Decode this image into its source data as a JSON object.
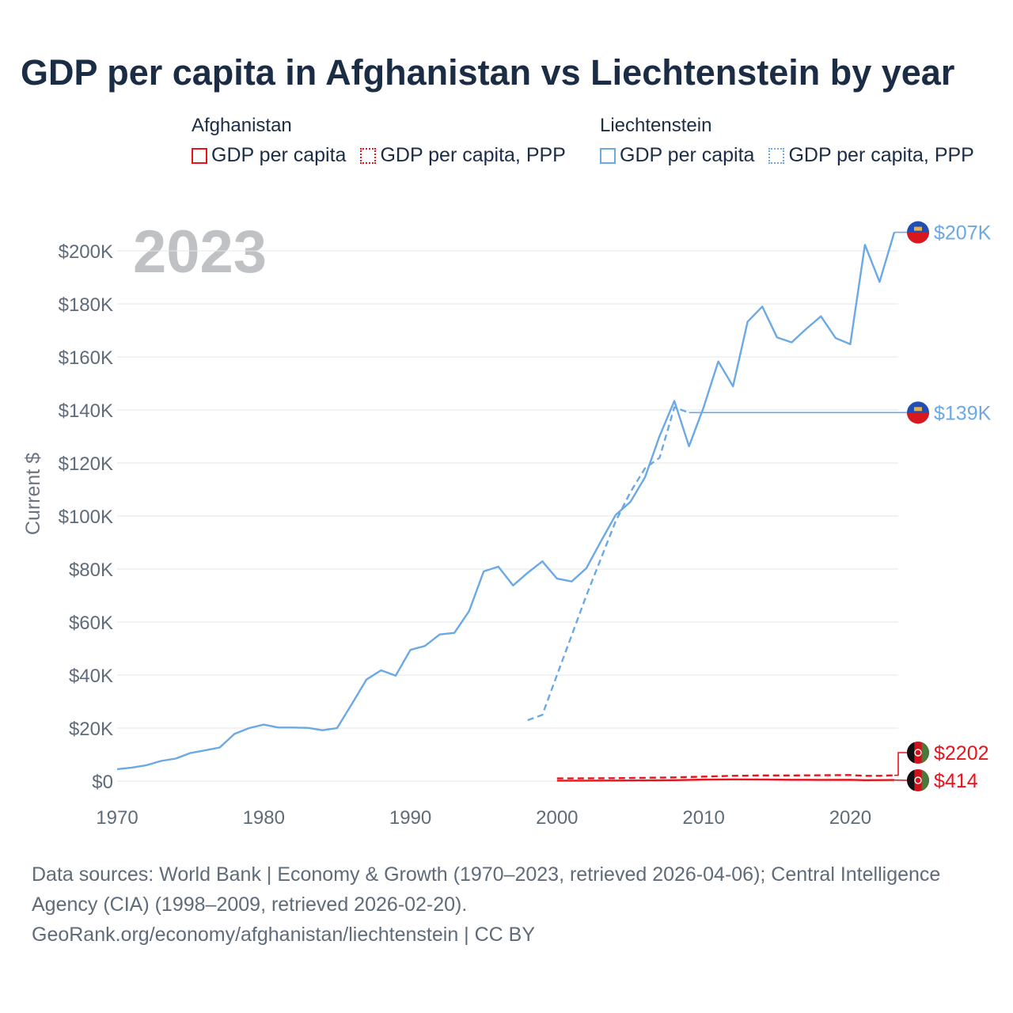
{
  "title": "GDP per capita in Afghanistan vs Liechtenstein by year",
  "legend": {
    "afghanistan": {
      "name": "Afghanistan",
      "items": [
        "GDP per capita",
        "GDP per capita, PPP"
      ]
    },
    "liechtenstein": {
      "name": "Liechtenstein",
      "items": [
        "GDP per capita",
        "GDP per capita, PPP"
      ]
    }
  },
  "colors": {
    "afghanistan": "#e8141c",
    "liechtenstein": "#6aa8e6"
  },
  "year_label": "2023",
  "end_labels": {
    "lie_gdp": "$207K",
    "lie_ppp": "$139K",
    "afg_ppp": "$2202",
    "afg_gdp": "$414"
  },
  "chart_data": {
    "type": "line",
    "title": "GDP per capita in Afghanistan vs Liechtenstein by year",
    "xlabel": "",
    "ylabel": "Current $",
    "xlim": [
      1970,
      2024
    ],
    "ylim": [
      0,
      210000
    ],
    "x_ticks": [
      1970,
      1980,
      1990,
      2000,
      2010,
      2020
    ],
    "x_tick_labels": [
      "1970",
      "1980",
      "1990",
      "2000",
      "2010",
      "2020"
    ],
    "y_ticks": [
      0,
      20000,
      40000,
      60000,
      80000,
      100000,
      120000,
      140000,
      160000,
      180000,
      200000
    ],
    "y_tick_labels": [
      "$0",
      "$20K",
      "$40K",
      "$60K",
      "$80K",
      "$100K",
      "$120K",
      "$140K",
      "$160K",
      "$180K",
      "$200K"
    ],
    "series": [
      {
        "name": "Liechtenstein GDP per capita",
        "style": "solid",
        "color": "#6aa8e6",
        "x": [
          1970,
          1971,
          1972,
          1973,
          1974,
          1975,
          1976,
          1977,
          1978,
          1979,
          1980,
          1981,
          1982,
          1983,
          1984,
          1985,
          1986,
          1987,
          1988,
          1989,
          1990,
          1991,
          1992,
          1993,
          1994,
          1995,
          1996,
          1997,
          1998,
          1999,
          2000,
          2001,
          2002,
          2003,
          2004,
          2005,
          2006,
          2007,
          2008,
          2009,
          2010,
          2011,
          2012,
          2013,
          2014,
          2015,
          2016,
          2017,
          2018,
          2019,
          2020,
          2021,
          2022,
          2023
        ],
        "values": [
          4500,
          5100,
          6000,
          7600,
          8500,
          10600,
          11600,
          12700,
          17800,
          20000,
          21300,
          20200,
          20200,
          20100,
          19200,
          20000,
          29000,
          38300,
          41800,
          39800,
          49500,
          51000,
          55300,
          55900,
          64100,
          79100,
          80900,
          73800,
          78600,
          82900,
          76400,
          75300,
          80300,
          90500,
          100400,
          105300,
          114600,
          130200,
          143400,
          126300,
          141000,
          158300,
          148900,
          173300,
          179000,
          167400,
          165500,
          170600,
          175300,
          167100,
          164800,
          202300,
          188300,
          207000
        ]
      },
      {
        "name": "Liechtenstein GDP per capita, PPP",
        "style": "dashed",
        "color": "#6aa8e6",
        "x": [
          1998,
          1999,
          2000,
          2001,
          2002,
          2003,
          2004,
          2005,
          2006,
          2007,
          2008,
          2009
        ],
        "values": [
          23000,
          25000,
          40000,
          55000,
          70000,
          84000,
          98000,
          109000,
          118000,
          122000,
          141000,
          139000
        ]
      },
      {
        "name": "Afghanistan GDP per capita",
        "style": "solid",
        "color": "#e8141c",
        "x": [
          2000,
          2002,
          2004,
          2006,
          2008,
          2010,
          2012,
          2014,
          2016,
          2018,
          2020,
          2021,
          2022,
          2023
        ],
        "values": [
          180,
          190,
          220,
          270,
          360,
          560,
          650,
          630,
          520,
          490,
          510,
          360,
          380,
          414
        ]
      },
      {
        "name": "Afghanistan GDP per capita, PPP",
        "style": "dashed",
        "color": "#e8141c",
        "x": [
          2000,
          2002,
          2004,
          2006,
          2008,
          2010,
          2012,
          2014,
          2016,
          2018,
          2020,
          2021,
          2022,
          2023
        ],
        "values": [
          1000,
          1050,
          1100,
          1250,
          1400,
          1700,
          2000,
          2150,
          2150,
          2200,
          2300,
          2000,
          2000,
          2202
        ]
      }
    ]
  },
  "footer": {
    "sources": "Data sources: World Bank | Economy & Growth (1970–2023, retrieved 2026-04-06); Central Intelligence Agency (CIA) (1998–2009, retrieved 2026-02-20).",
    "credit": "GeoRank.org/economy/afghanistan/liechtenstein | CC BY"
  }
}
